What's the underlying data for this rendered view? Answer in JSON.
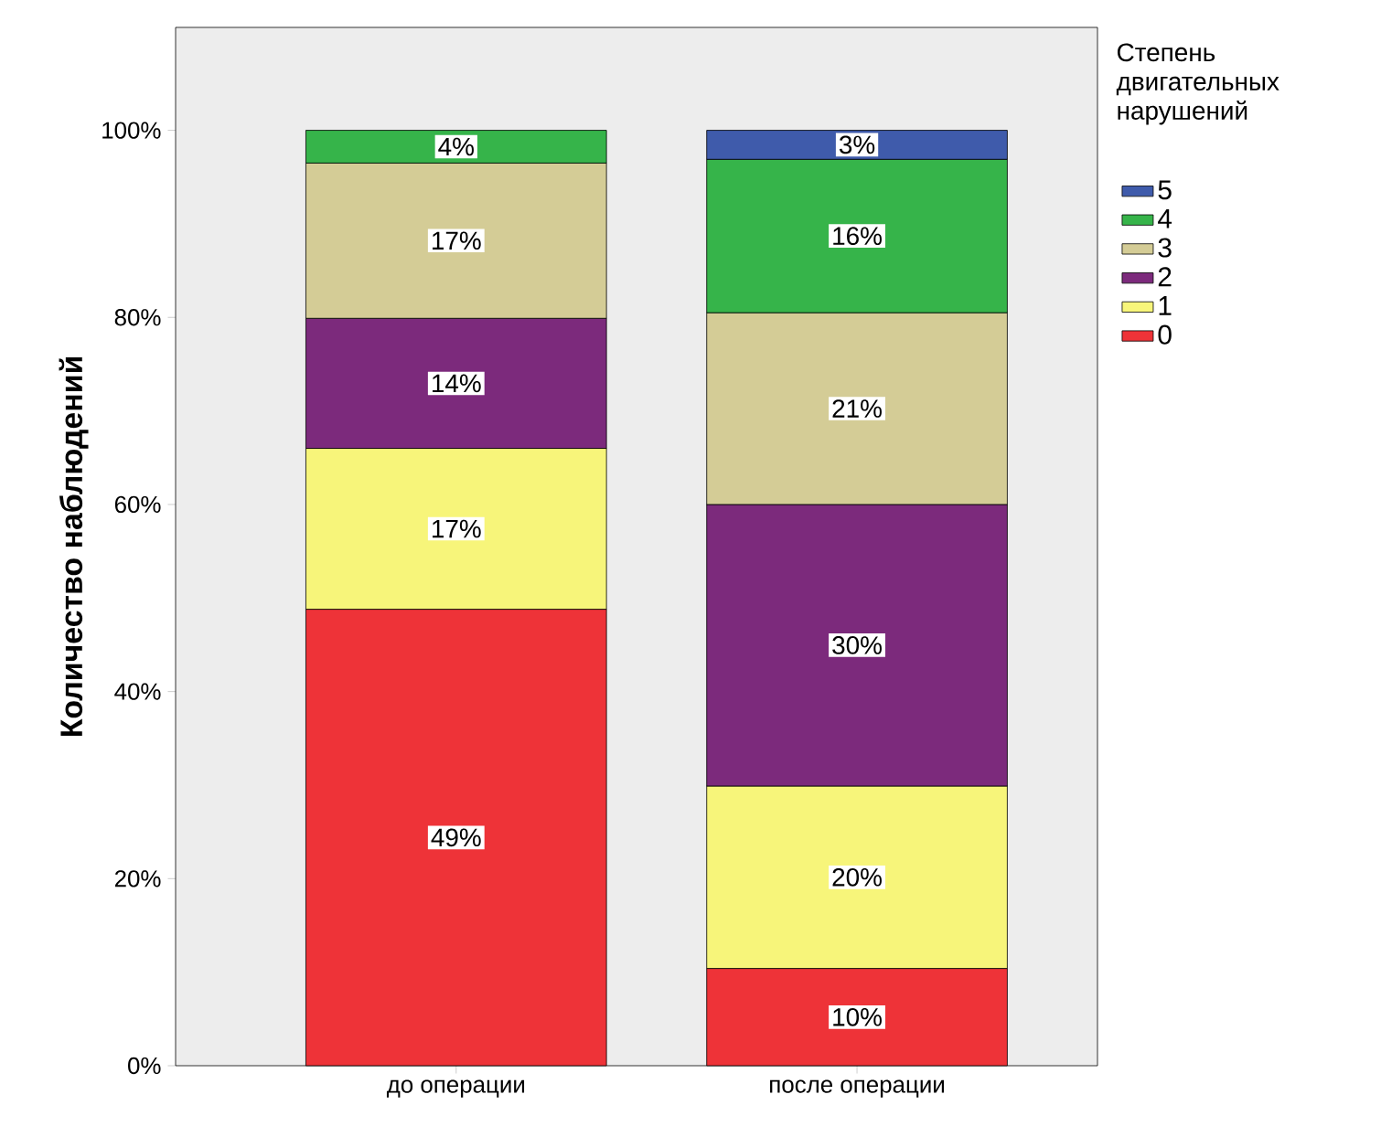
{
  "chart_data": {
    "type": "bar",
    "stacked": true,
    "ylabel": "Количество наблюдений",
    "legend_title": "Степень двигательных нарушений",
    "legend": "right",
    "grid": false,
    "categories": [
      "до операции",
      "после операции"
    ],
    "ylim": [
      0,
      111
    ],
    "yticks": [
      {
        "value": 0,
        "label": "0%"
      },
      {
        "value": 20,
        "label": "20%"
      },
      {
        "value": 40,
        "label": "40%"
      },
      {
        "value": 60,
        "label": "60%"
      },
      {
        "value": 80,
        "label": "80%"
      },
      {
        "value": 100,
        "label": "100%"
      }
    ],
    "series": [
      {
        "name": "0",
        "color": "#ee3338",
        "values": [
          48.8,
          10.4
        ],
        "value_labels": [
          "49%",
          "10%"
        ]
      },
      {
        "name": "1",
        "color": "#f7f57a",
        "values": [
          17.2,
          19.5
        ],
        "value_labels": [
          "17%",
          "20%"
        ]
      },
      {
        "name": "2",
        "color": "#7c2a7c",
        "values": [
          13.9,
          30.1
        ],
        "value_labels": [
          "14%",
          "30%"
        ]
      },
      {
        "name": "3",
        "color": "#d4cc96",
        "values": [
          16.6,
          20.5
        ],
        "value_labels": [
          "17%",
          "21%"
        ]
      },
      {
        "name": "4",
        "color": "#36b44a",
        "values": [
          3.5,
          16.4
        ],
        "value_labels": [
          "4%",
          "16%"
        ]
      },
      {
        "name": "5",
        "color": "#3f5bab",
        "values": [
          null,
          3.1
        ],
        "value_labels": [
          null,
          "3%"
        ]
      }
    ]
  }
}
